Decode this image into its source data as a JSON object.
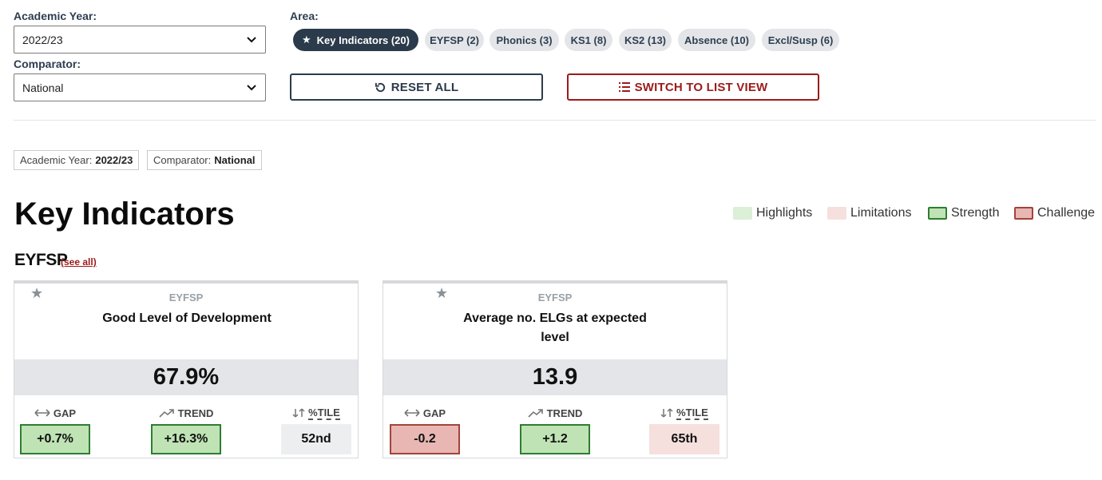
{
  "filters": {
    "academic_year_label": "Academic Year:",
    "academic_year_value": "2022/23",
    "comparator_label": "Comparator:",
    "comparator_value": "National",
    "area_label": "Area:"
  },
  "areas": [
    {
      "label": "Key Indicators (20)",
      "active": true
    },
    {
      "label": "EYFSP (2)"
    },
    {
      "label": "Phonics (3)"
    },
    {
      "label": "KS1 (8)"
    },
    {
      "label": "KS2 (13)"
    },
    {
      "label": "Absence (10)"
    },
    {
      "label": "Excl/Susp (6)"
    }
  ],
  "buttons": {
    "reset": "RESET ALL",
    "switch": "SWITCH TO LIST VIEW"
  },
  "tags": {
    "year_label": "Academic Year:",
    "year_value": "2022/23",
    "comp_label": "Comparator:",
    "comp_value": "National"
  },
  "page_title": "Key Indicators",
  "legend": [
    {
      "label": "Highlights",
      "color": "#dcefd7"
    },
    {
      "label": "Limitations",
      "color": "#f5e0de"
    },
    {
      "label": "Strength",
      "color": "#bfe3b5",
      "border": "#2e7d32"
    },
    {
      "label": "Challenge",
      "color": "#e8b7b3",
      "border": "#a3433a"
    }
  ],
  "section": {
    "title": "EYFSP",
    "see_all": "(see all)"
  },
  "cards": [
    {
      "category": "EYFSP",
      "name": "Good Level of Development",
      "value": "67.9%",
      "gap_label": "GAP",
      "gap": "+0.7%",
      "trend_label": "TREND",
      "trend": "+16.3%",
      "pct_label": "%TILE",
      "pct": "52nd"
    },
    {
      "category": "EYFSP",
      "name": "Average no. ELGs at expected level",
      "value": "13.9",
      "gap_label": "GAP",
      "gap": "-0.2",
      "trend_label": "TREND",
      "trend": "+1.2",
      "pct_label": "%TILE",
      "pct": "65th"
    }
  ]
}
